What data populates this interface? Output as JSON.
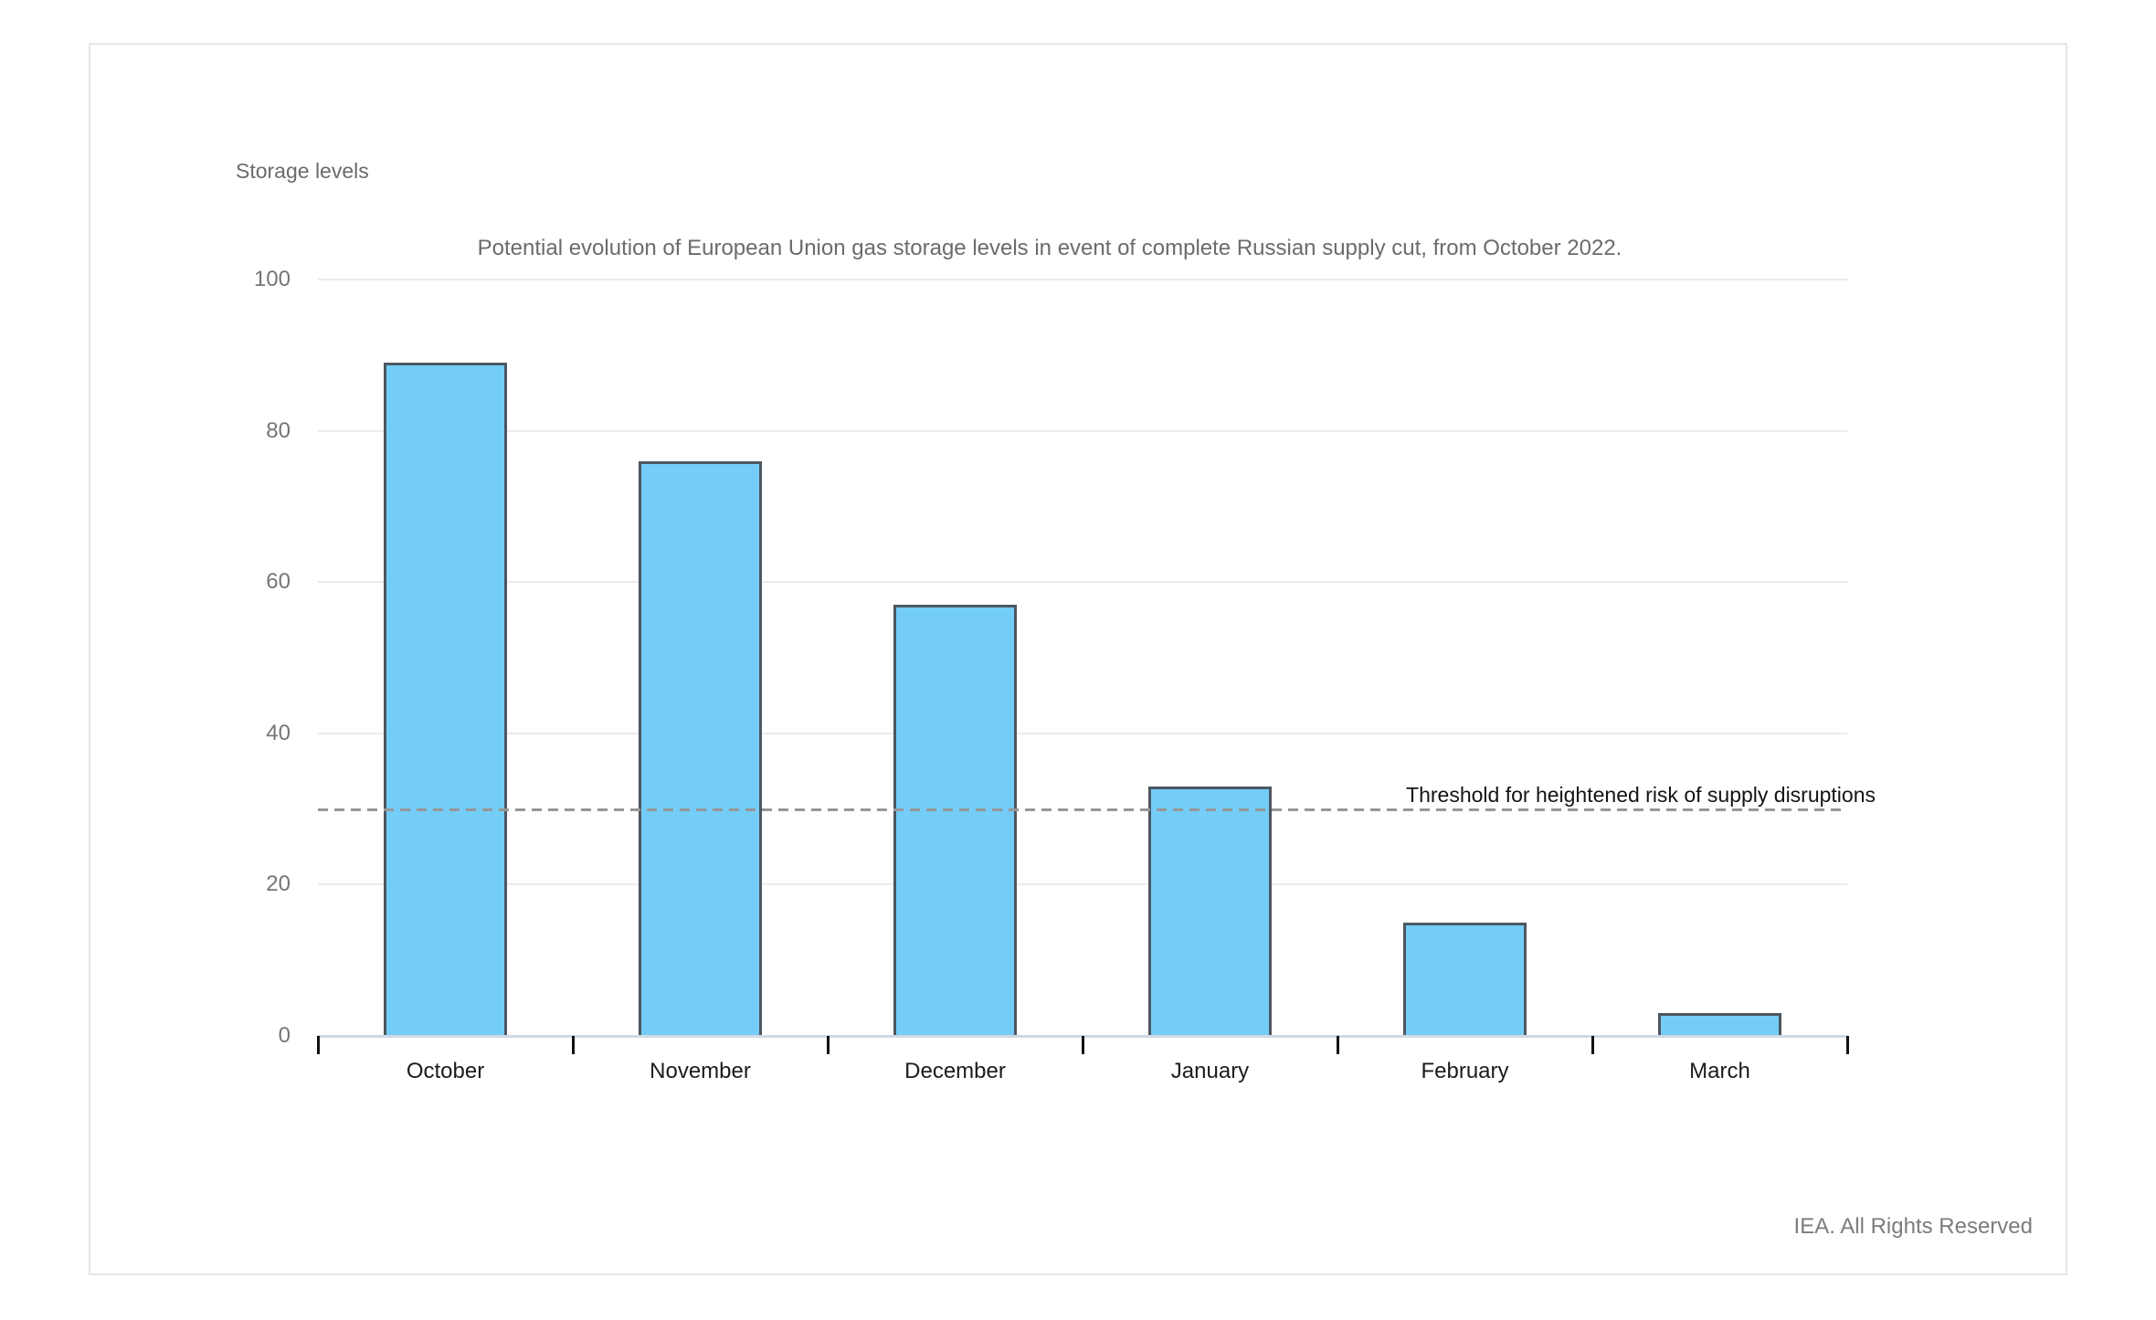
{
  "chart_data": {
    "type": "bar",
    "unit_label": "Storage levels",
    "subtitle": "Potential evolution of European Union gas storage levels in event of complete Russian supply cut, from October 2022.",
    "categories": [
      "October",
      "November",
      "December",
      "January",
      "February",
      "March"
    ],
    "values": [
      89,
      76,
      57,
      33,
      15,
      3
    ],
    "ylim": [
      0,
      100
    ],
    "yticks": [
      0,
      20,
      40,
      60,
      80,
      100
    ],
    "grid": "horizontal",
    "legend_position": "none",
    "threshold": {
      "value": 30,
      "label": "Threshold for heightened risk of supply disruptions"
    },
    "colors": {
      "bar_fill": "#73CDF6",
      "bar_border": "#4D5761",
      "gridline": "#EBEBEB",
      "axis_line": "#CFD9E6",
      "tick_mark": "#111111",
      "threshold_line": "#979797"
    }
  },
  "footer": {
    "credit": "IEA. All Rights Reserved"
  }
}
